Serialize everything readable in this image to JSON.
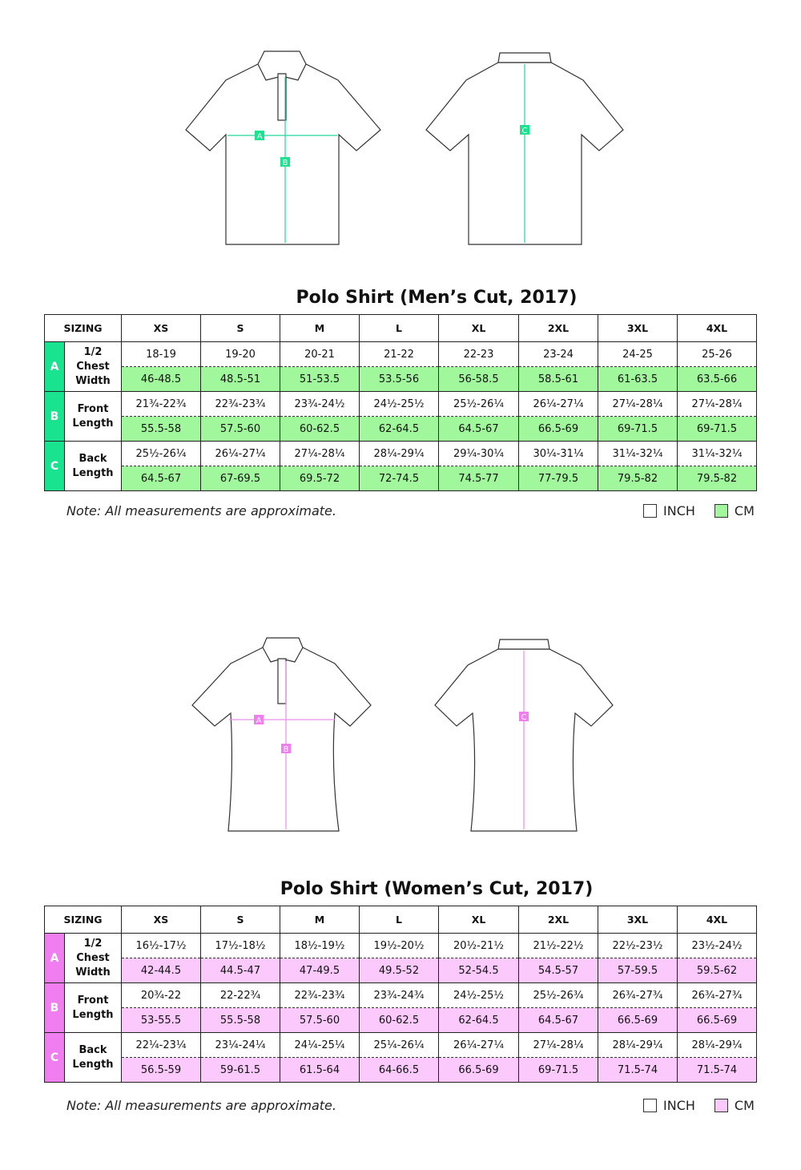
{
  "colors": {
    "men_accent": "#19e38e",
    "men_cm_fill": "#a1f79b",
    "women_accent": "#f07ef0",
    "women_cm_fill": "#fcc9fc"
  },
  "men": {
    "title": "Polo Shirt (Men’s Cut, 2017)",
    "markers": {
      "a": "A",
      "b": "B",
      "c": "C"
    },
    "header": [
      "SIZING",
      "XS",
      "S",
      "M",
      "L",
      "XL",
      "2XL",
      "3XL",
      "4XL"
    ],
    "rows": [
      {
        "letter": "A",
        "label": "1/2 Chest Width",
        "inch": [
          "18-19",
          "19-20",
          "20-21",
          "21-22",
          "22-23",
          "23-24",
          "24-25",
          "25-26"
        ],
        "cm": [
          "46-48.5",
          "48.5-51",
          "51-53.5",
          "53.5-56",
          "56-58.5",
          "58.5-61",
          "61-63.5",
          "63.5-66"
        ]
      },
      {
        "letter": "B",
        "label": "Front Length",
        "inch": [
          "21¾-22¾",
          "22¾-23¾",
          "23¾-24½",
          "24½-25½",
          "25½-26¼",
          "26¼-27¼",
          "27¼-28¼",
          "27¼-28¼"
        ],
        "cm": [
          "55.5-58",
          "57.5-60",
          "60-62.5",
          "62-64.5",
          "64.5-67",
          "66.5-69",
          "69-71.5",
          "69-71.5"
        ]
      },
      {
        "letter": "C",
        "label": "Back Length",
        "inch": [
          "25½-26¼",
          "26¼-27¼",
          "27¼-28¼",
          "28¼-29¼",
          "29¼-30¼",
          "30¼-31¼",
          "31¼-32¼",
          "31¼-32¼"
        ],
        "cm": [
          "64.5-67",
          "67-69.5",
          "69.5-72",
          "72-74.5",
          "74.5-77",
          "77-79.5",
          "79.5-82",
          "79.5-82"
        ]
      }
    ],
    "note": "Note: All measurements are approximate.",
    "legend": {
      "inch": "INCH",
      "cm": "CM"
    }
  },
  "women": {
    "title": "Polo Shirt (Women’s Cut, 2017)",
    "markers": {
      "a": "A",
      "b": "B",
      "c": "C"
    },
    "header": [
      "SIZING",
      "XS",
      "S",
      "M",
      "L",
      "XL",
      "2XL",
      "3XL",
      "4XL"
    ],
    "rows": [
      {
        "letter": "A",
        "label": "1/2 Chest Width",
        "inch": [
          "16½-17½",
          "17½-18½",
          "18½-19½",
          "19½-20½",
          "20½-21½",
          "21½-22½",
          "22½-23½",
          "23½-24½"
        ],
        "cm": [
          "42-44.5",
          "44.5-47",
          "47-49.5",
          "49.5-52",
          "52-54.5",
          "54.5-57",
          "57-59.5",
          "59.5-62"
        ]
      },
      {
        "letter": "B",
        "label": "Front Length",
        "inch": [
          "20¾-22",
          "22-22¾",
          "22¾-23¾",
          "23¾-24¾",
          "24½-25½",
          "25½-26¾",
          "26¾-27¾",
          "26¾-27¾"
        ],
        "cm": [
          "53-55.5",
          "55.5-58",
          "57.5-60",
          "60-62.5",
          "62-64.5",
          "64.5-67",
          "66.5-69",
          "66.5-69"
        ]
      },
      {
        "letter": "C",
        "label": "Back Length",
        "inch": [
          "22¼-23¼",
          "23¼-24¼",
          "24¼-25¼",
          "25¼-26¼",
          "26¼-27¼",
          "27¼-28¼",
          "28¼-29¼",
          "28¼-29¼"
        ],
        "cm": [
          "56.5-59",
          "59-61.5",
          "61.5-64",
          "64-66.5",
          "66.5-69",
          "69-71.5",
          "71.5-74",
          "71.5-74"
        ]
      }
    ],
    "note": "Note: All measurements are approximate.",
    "legend": {
      "inch": "INCH",
      "cm": "CM"
    }
  }
}
